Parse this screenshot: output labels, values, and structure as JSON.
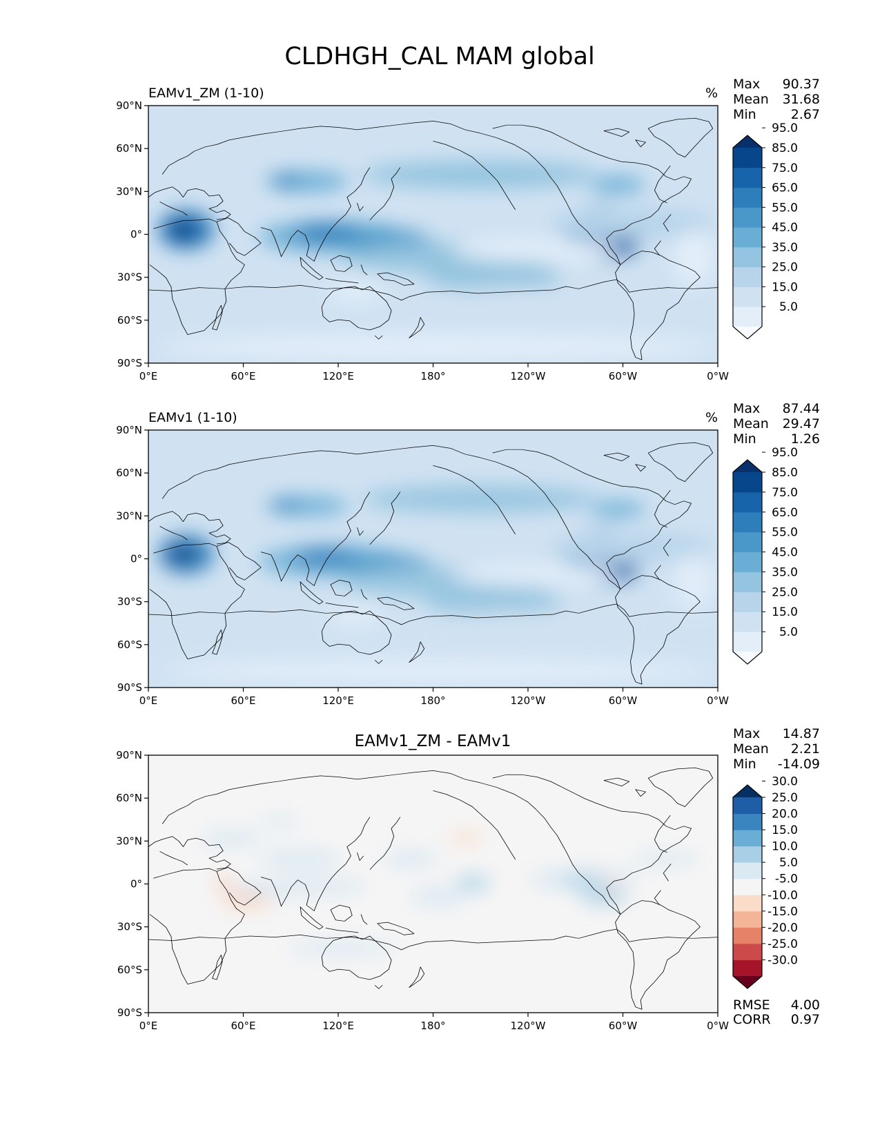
{
  "figure": {
    "title": "CLDHGH_CAL MAM global"
  },
  "chart_data": [
    {
      "type": "heatmap",
      "kind": "filled-contour-map",
      "title": "EAMv1_ZM (1-10)",
      "units": "%",
      "x_ticks": [
        "0°E",
        "60°E",
        "120°E",
        "180°",
        "120°W",
        "60°W",
        "0°W"
      ],
      "y_ticks": [
        "90°N",
        "60°N",
        "30°N",
        "0°",
        "30°S",
        "60°S",
        "90°S"
      ],
      "stats": [
        {
          "label": "Max",
          "value": "90.37"
        },
        {
          "label": "Mean",
          "value": "31.68"
        },
        {
          "label": "Min",
          "value": "2.67"
        }
      ],
      "colorbar": {
        "labels": [
          "5.0",
          "15.0",
          "25.0",
          "35.0",
          "45.0",
          "55.0",
          "65.0",
          "75.0",
          "85.0",
          "95.0"
        ],
        "colors": [
          "#f7fbff",
          "#e3eef9",
          "#d0e2f2",
          "#b7d4ea",
          "#94c4df",
          "#6aaed6",
          "#4a98c9",
          "#2e7ebc",
          "#1764ab",
          "#08468b",
          "#08306b"
        ]
      }
    },
    {
      "type": "heatmap",
      "kind": "filled-contour-map",
      "title": "EAMv1 (1-10)",
      "units": "%",
      "x_ticks": [
        "0°E",
        "60°E",
        "120°E",
        "180°",
        "120°W",
        "60°W",
        "0°W"
      ],
      "y_ticks": [
        "90°N",
        "60°N",
        "30°N",
        "0°",
        "30°S",
        "60°S",
        "90°S"
      ],
      "stats": [
        {
          "label": "Max",
          "value": "87.44"
        },
        {
          "label": "Mean",
          "value": "29.47"
        },
        {
          "label": "Min",
          "value": "1.26"
        }
      ],
      "colorbar": {
        "labels": [
          "5.0",
          "15.0",
          "25.0",
          "35.0",
          "45.0",
          "55.0",
          "65.0",
          "75.0",
          "85.0",
          "95.0"
        ],
        "colors": [
          "#f7fbff",
          "#e3eef9",
          "#d0e2f2",
          "#b7d4ea",
          "#94c4df",
          "#6aaed6",
          "#4a98c9",
          "#2e7ebc",
          "#1764ab",
          "#08468b",
          "#08306b"
        ]
      }
    },
    {
      "type": "heatmap",
      "kind": "filled-contour-map",
      "title": "EAMv1_ZM - EAMv1",
      "units": "",
      "x_ticks": [
        "0°E",
        "60°E",
        "120°E",
        "180°",
        "120°W",
        "60°W",
        "0°W"
      ],
      "y_ticks": [
        "90°N",
        "60°N",
        "30°N",
        "0°",
        "30°S",
        "60°S",
        "90°S"
      ],
      "stats": [
        {
          "label": "Max",
          "value": "14.87"
        },
        {
          "label": "Mean",
          "value": "2.21"
        },
        {
          "label": "Min",
          "value": "-14.09"
        }
      ],
      "metrics": [
        {
          "label": "RMSE",
          "value": "4.00"
        },
        {
          "label": "CORR",
          "value": "0.97"
        }
      ],
      "colorbar": {
        "labels": [
          "-30.0",
          "-25.0",
          "-20.0",
          "-15.0",
          "-10.0",
          "-5.0",
          "5.0",
          "10.0",
          "15.0",
          "20.0",
          "25.0",
          "30.0"
        ],
        "colors": [
          "#67001f",
          "#a51429",
          "#cc4a4a",
          "#e58268",
          "#f4b497",
          "#fbdcc9",
          "#f5f5f5",
          "#dbe9f3",
          "#a8cfe5",
          "#6aaed6",
          "#3a84bf",
          "#1d5ea7",
          "#053061"
        ]
      }
    }
  ]
}
